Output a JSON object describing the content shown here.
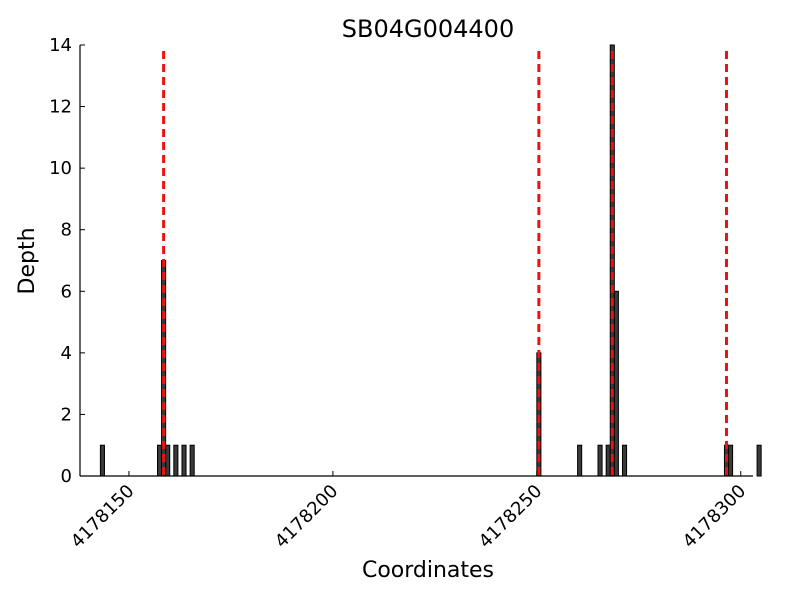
{
  "chart_data": {
    "type": "bar",
    "title": "SB04G004400",
    "xlabel": "Coordinates",
    "ylabel": "Depth",
    "xlim": [
      4178138,
      4178303
    ],
    "ylim": [
      0,
      14
    ],
    "x_ticks": [
      4178150,
      4178200,
      4178250,
      4178300
    ],
    "y_ticks": [
      0,
      2,
      4,
      6,
      8,
      10,
      12,
      14
    ],
    "bars": [
      {
        "x": 4178143,
        "y": 1
      },
      {
        "x": 4178157,
        "y": 1
      },
      {
        "x": 4178158,
        "y": 7
      },
      {
        "x": 4178159,
        "y": 1
      },
      {
        "x": 4178161,
        "y": 1
      },
      {
        "x": 4178163,
        "y": 1
      },
      {
        "x": 4178165,
        "y": 1
      },
      {
        "x": 4178250,
        "y": 4
      },
      {
        "x": 4178260,
        "y": 1
      },
      {
        "x": 4178265,
        "y": 1
      },
      {
        "x": 4178267,
        "y": 1
      },
      {
        "x": 4178268,
        "y": 14
      },
      {
        "x": 4178269,
        "y": 6
      },
      {
        "x": 4178271,
        "y": 1
      },
      {
        "x": 4178296,
        "y": 1
      },
      {
        "x": 4178297,
        "y": 1
      },
      {
        "x": 4178304,
        "y": 1
      }
    ],
    "bar_width": 1,
    "vertical_markers": [
      4178158.5,
      4178250.5,
      4178268.5,
      4178296.5
    ],
    "marker_color": "#ee1111",
    "bar_color": "#3a3a3a",
    "grid": false
  }
}
